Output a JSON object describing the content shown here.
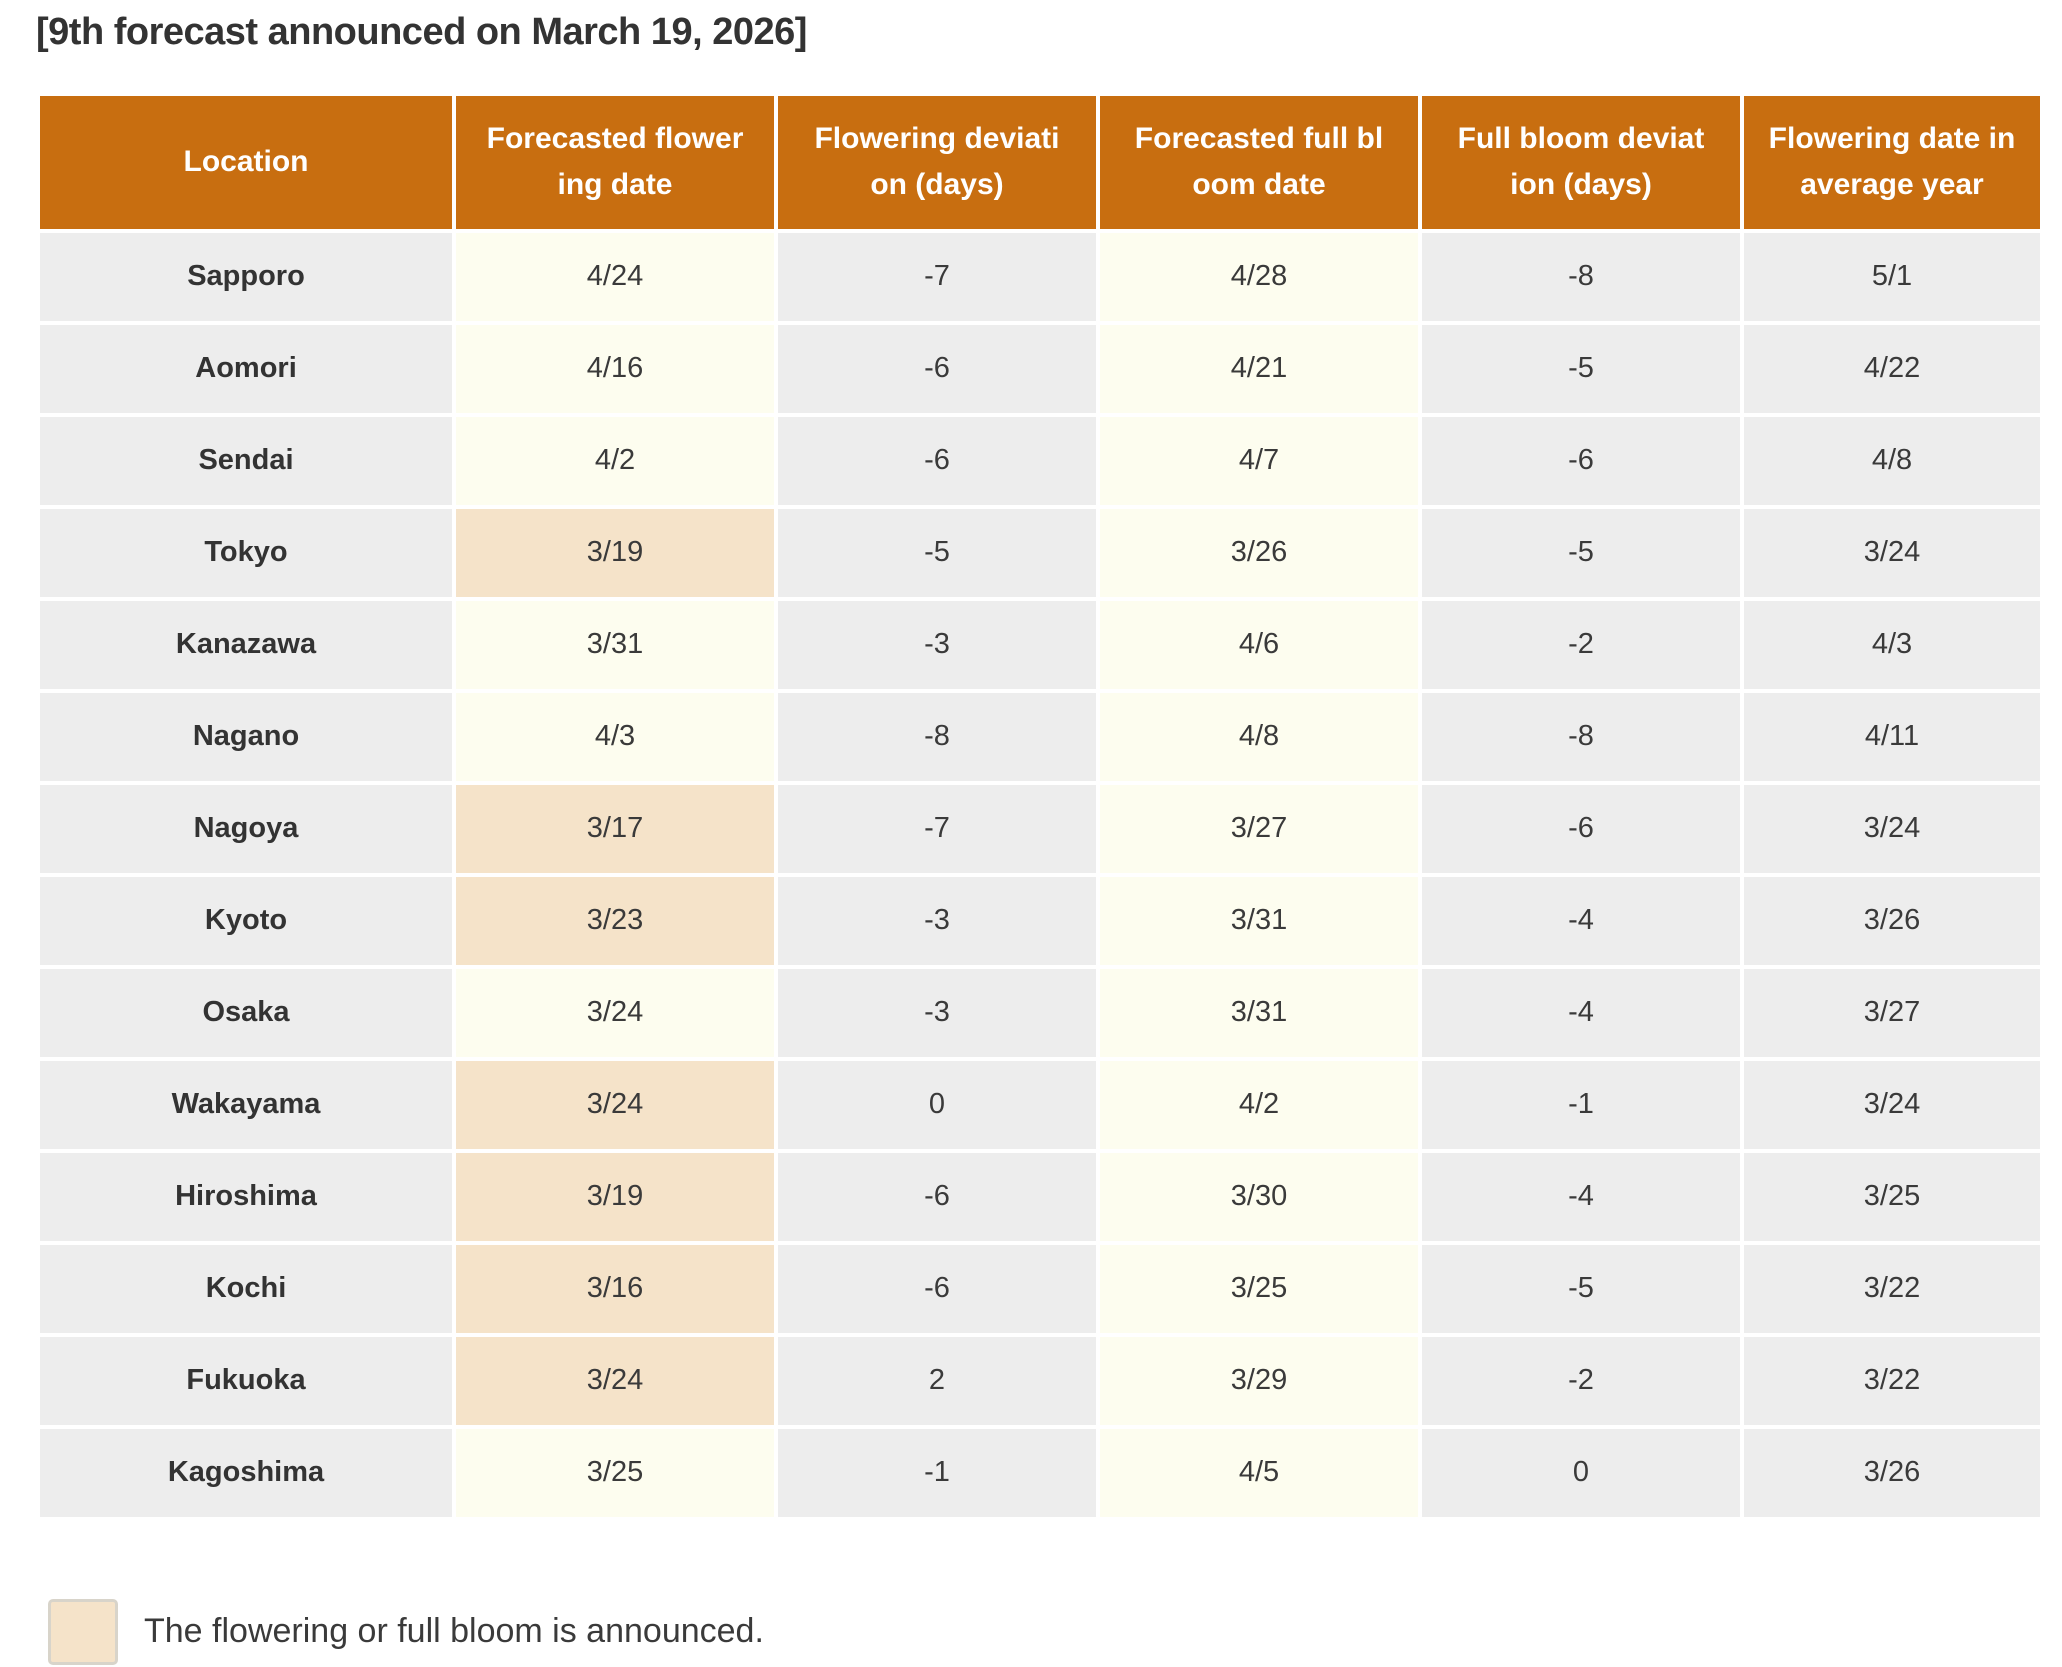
{
  "page": {
    "title": "[9th forecast announced on March 19, 2026]"
  },
  "chart_data": {
    "type": "table",
    "title": "[9th forecast announced on March 19, 2026]",
    "columns": [
      {
        "name": "location",
        "label": "Location"
      },
      {
        "name": "forecasted-flowering-date",
        "label": "Forecasted flower\ning date"
      },
      {
        "name": "flowering-deviation-days",
        "label": "Flowering deviati\non (days)"
      },
      {
        "name": "forecasted-full-bloom-date",
        "label": "Forecasted full bl\noom date"
      },
      {
        "name": "full-bloom-deviation-days",
        "label": "Full bloom deviat\nion (days)"
      },
      {
        "name": "flowering-date-average-year",
        "label": "Flowering date in\naverage year"
      }
    ],
    "rows": [
      {
        "location": "Sapporo",
        "forecasted_flowering_date": "4/24",
        "flowering_deviation_days": "-7",
        "forecasted_full_bloom_date": "4/28",
        "full_bloom_deviation_days": "-8",
        "flowering_date_average_year": "5/1",
        "flowering_announced": false
      },
      {
        "location": "Aomori",
        "forecasted_flowering_date": "4/16",
        "flowering_deviation_days": "-6",
        "forecasted_full_bloom_date": "4/21",
        "full_bloom_deviation_days": "-5",
        "flowering_date_average_year": "4/22",
        "flowering_announced": false
      },
      {
        "location": "Sendai",
        "forecasted_flowering_date": "4/2",
        "flowering_deviation_days": "-6",
        "forecasted_full_bloom_date": "4/7",
        "full_bloom_deviation_days": "-6",
        "flowering_date_average_year": "4/8",
        "flowering_announced": false
      },
      {
        "location": "Tokyo",
        "forecasted_flowering_date": "3/19",
        "flowering_deviation_days": "-5",
        "forecasted_full_bloom_date": "3/26",
        "full_bloom_deviation_days": "-5",
        "flowering_date_average_year": "3/24",
        "flowering_announced": true
      },
      {
        "location": "Kanazawa",
        "forecasted_flowering_date": "3/31",
        "flowering_deviation_days": "-3",
        "forecasted_full_bloom_date": "4/6",
        "full_bloom_deviation_days": "-2",
        "flowering_date_average_year": "4/3",
        "flowering_announced": false
      },
      {
        "location": "Nagano",
        "forecasted_flowering_date": "4/3",
        "flowering_deviation_days": "-8",
        "forecasted_full_bloom_date": "4/8",
        "full_bloom_deviation_days": "-8",
        "flowering_date_average_year": "4/11",
        "flowering_announced": false
      },
      {
        "location": "Nagoya",
        "forecasted_flowering_date": "3/17",
        "flowering_deviation_days": "-7",
        "forecasted_full_bloom_date": "3/27",
        "full_bloom_deviation_days": "-6",
        "flowering_date_average_year": "3/24",
        "flowering_announced": true
      },
      {
        "location": "Kyoto",
        "forecasted_flowering_date": "3/23",
        "flowering_deviation_days": "-3",
        "forecasted_full_bloom_date": "3/31",
        "full_bloom_deviation_days": "-4",
        "flowering_date_average_year": "3/26",
        "flowering_announced": true
      },
      {
        "location": "Osaka",
        "forecasted_flowering_date": "3/24",
        "flowering_deviation_days": "-3",
        "forecasted_full_bloom_date": "3/31",
        "full_bloom_deviation_days": "-4",
        "flowering_date_average_year": "3/27",
        "flowering_announced": false
      },
      {
        "location": "Wakayama",
        "forecasted_flowering_date": "3/24",
        "flowering_deviation_days": "0",
        "forecasted_full_bloom_date": "4/2",
        "full_bloom_deviation_days": "-1",
        "flowering_date_average_year": "3/24",
        "flowering_announced": true
      },
      {
        "location": "Hiroshima",
        "forecasted_flowering_date": "3/19",
        "flowering_deviation_days": "-6",
        "forecasted_full_bloom_date": "3/30",
        "full_bloom_deviation_days": "-4",
        "flowering_date_average_year": "3/25",
        "flowering_announced": true
      },
      {
        "location": "Kochi",
        "forecasted_flowering_date": "3/16",
        "flowering_deviation_days": "-6",
        "forecasted_full_bloom_date": "3/25",
        "full_bloom_deviation_days": "-5",
        "flowering_date_average_year": "3/22",
        "flowering_announced": true
      },
      {
        "location": "Fukuoka",
        "forecasted_flowering_date": "3/24",
        "flowering_deviation_days": "2",
        "forecasted_full_bloom_date": "3/29",
        "full_bloom_deviation_days": "-2",
        "flowering_date_average_year": "3/22",
        "flowering_announced": true
      },
      {
        "location": "Kagoshima",
        "forecasted_flowering_date": "3/25",
        "flowering_deviation_days": "-1",
        "forecasted_full_bloom_date": "4/5",
        "full_bloom_deviation_days": "0",
        "flowering_date_average_year": "3/26",
        "flowering_announced": false
      }
    ],
    "legend_position": "bottom-left",
    "grid": false
  },
  "legend": {
    "label": "The flowering or full bloom is announced."
  },
  "colors": {
    "header_bg": "#c86e10",
    "header_text": "#ffffff",
    "cell_gray": "#ededed",
    "cell_cream": "#fdfdef",
    "cell_announced": "#f5e3c9",
    "text": "#3a3a3a"
  }
}
